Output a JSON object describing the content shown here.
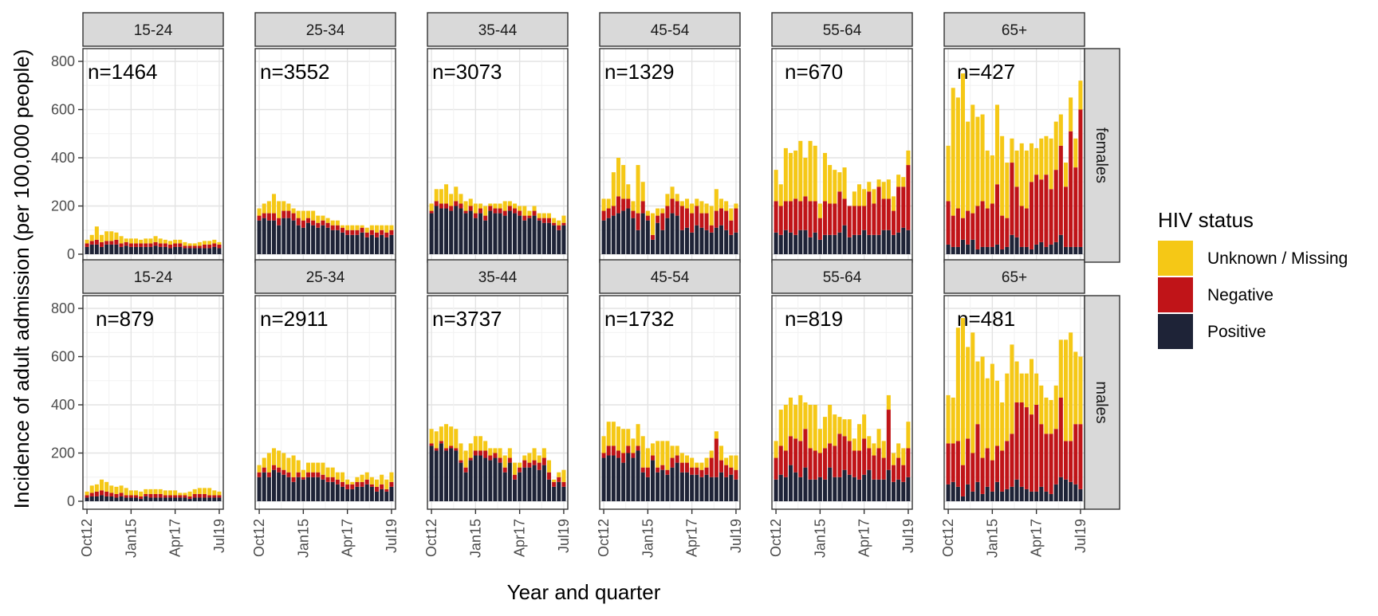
{
  "chart_data": {
    "type": "bar",
    "stacked": true,
    "facets": {
      "columns": [
        "15-24",
        "25-34",
        "35-44",
        "45-54",
        "55-64",
        "65+"
      ],
      "rows": [
        "females",
        "males"
      ]
    },
    "xlabel": "Year and quarter",
    "ylabel": "Incidence of adult admission (per 100,000 people)",
    "ylim": [
      0,
      800
    ],
    "yticks": [
      0,
      200,
      400,
      600,
      800
    ],
    "x_tick_labels": [
      "Oct12",
      "Jan15",
      "Apr17",
      "Jul19"
    ],
    "x_tick_index": [
      0,
      9,
      18,
      27
    ],
    "grid": true,
    "legend": {
      "title": "HIV status",
      "placement": "right",
      "entries": [
        {
          "name": "Unknown / Missing",
          "color": "#F5C816"
        },
        {
          "name": "Negative",
          "color": "#C01418"
        },
        {
          "name": "Positive",
          "color": "#1E2337"
        }
      ]
    },
    "panels": [
      {
        "row": "females",
        "age": "15-24",
        "n_label": "n=1464",
        "positive": [
          30,
          40,
          40,
          30,
          40,
          40,
          40,
          30,
          35,
          30,
          30,
          30,
          30,
          30,
          35,
          30,
          30,
          25,
          30,
          30,
          25,
          25,
          25,
          25,
          25,
          25,
          30,
          25
        ],
        "negative": [
          15,
          15,
          20,
          20,
          15,
          15,
          20,
          15,
          15,
          15,
          15,
          15,
          15,
          15,
          15,
          15,
          15,
          15,
          15,
          15,
          10,
          10,
          10,
          10,
          15,
          15,
          15,
          15
        ],
        "unknown": [
          15,
          25,
          55,
          30,
          40,
          40,
          30,
          30,
          15,
          20,
          20,
          15,
          20,
          20,
          25,
          20,
          15,
          15,
          15,
          15,
          15,
          10,
          10,
          15,
          15,
          15,
          15,
          10
        ]
      },
      {
        "row": "females",
        "age": "25-34",
        "n_label": "n=3552",
        "positive": [
          140,
          150,
          140,
          140,
          120,
          150,
          150,
          140,
          120,
          110,
          130,
          120,
          110,
          120,
          110,
          100,
          100,
          90,
          80,
          80,
          80,
          90,
          70,
          80,
          70,
          80,
          70,
          80
        ],
        "negative": [
          20,
          20,
          30,
          30,
          30,
          30,
          30,
          30,
          30,
          30,
          20,
          20,
          20,
          20,
          20,
          20,
          20,
          20,
          20,
          20,
          20,
          20,
          20,
          20,
          20,
          20,
          20,
          20
        ],
        "unknown": [
          30,
          40,
          50,
          80,
          70,
          40,
          30,
          20,
          30,
          40,
          30,
          40,
          30,
          20,
          20,
          20,
          20,
          10,
          20,
          20,
          20,
          10,
          20,
          20,
          30,
          20,
          30,
          20
        ]
      },
      {
        "row": "females",
        "age": "35-44",
        "n_label": "n=3073",
        "positive": [
          170,
          200,
          190,
          190,
          180,
          200,
          190,
          170,
          180,
          150,
          170,
          140,
          180,
          170,
          170,
          160,
          180,
          170,
          160,
          140,
          150,
          160,
          140,
          130,
          130,
          120,
          100,
          120
        ],
        "negative": [
          10,
          20,
          20,
          20,
          20,
          20,
          20,
          10,
          20,
          20,
          20,
          20,
          20,
          20,
          20,
          20,
          20,
          20,
          20,
          20,
          10,
          20,
          10,
          20,
          20,
          10,
          20,
          10
        ],
        "unknown": [
          30,
          50,
          60,
          80,
          50,
          60,
          40,
          40,
          30,
          40,
          20,
          40,
          10,
          20,
          20,
          40,
          20,
          20,
          20,
          40,
          20,
          20,
          20,
          20,
          20,
          20,
          20,
          30
        ]
      },
      {
        "row": "females",
        "age": "45-54",
        "n_label": "n=1329",
        "positive": [
          140,
          150,
          160,
          170,
          180,
          190,
          150,
          100,
          170,
          140,
          60,
          130,
          100,
          150,
          170,
          160,
          100,
          110,
          90,
          120,
          110,
          100,
          90,
          110,
          120,
          100,
          80,
          90
        ],
        "negative": [
          40,
          40,
          40,
          70,
          50,
          40,
          30,
          70,
          50,
          20,
          20,
          30,
          70,
          50,
          60,
          60,
          100,
          80,
          80,
          80,
          60,
          70,
          30,
          70,
          70,
          80,
          60,
          100
        ],
        "unknown": [
          50,
          40,
          140,
          160,
          140,
          60,
          40,
          200,
          80,
          20,
          90,
          30,
          20,
          50,
          50,
          30,
          20,
          40,
          40,
          30,
          50,
          40,
          80,
          90,
          40,
          40,
          50,
          20
        ]
      },
      {
        "row": "females",
        "age": "55-64",
        "n_label": "n=670",
        "positive": [
          90,
          80,
          100,
          90,
          80,
          100,
          100,
          70,
          90,
          60,
          80,
          80,
          80,
          90,
          120,
          70,
          80,
          80,
          100,
          80,
          80,
          80,
          100,
          100,
          80,
          90,
          110,
          100
        ],
        "negative": [
          130,
          120,
          120,
          130,
          150,
          120,
          140,
          150,
          130,
          90,
          140,
          130,
          130,
          170,
          110,
          130,
          120,
          120,
          100,
          180,
          130,
          200,
          130,
          130,
          100,
          190,
          170,
          270
        ],
        "unknown": [
          130,
          90,
          220,
          200,
          200,
          250,
          160,
          250,
          230,
          60,
          200,
          160,
          140,
          80,
          130,
          0,
          60,
          90,
          70,
          40,
          60,
          30,
          70,
          80,
          60,
          50,
          40,
          60
        ]
      },
      {
        "row": "females",
        "age": "65+",
        "n_label": "n=427",
        "positive": [
          40,
          30,
          30,
          60,
          40,
          60,
          20,
          30,
          30,
          30,
          40,
          20,
          30,
          80,
          70,
          30,
          30,
          20,
          40,
          50,
          30,
          40,
          50,
          80,
          30,
          30,
          30,
          30
        ],
        "negative": [
          180,
          130,
          160,
          90,
          140,
          110,
          180,
          190,
          160,
          180,
          250,
          140,
          120,
          300,
          210,
          170,
          160,
          280,
          290,
          260,
          300,
          230,
          300,
          370,
          250,
          480,
          330,
          570
        ],
        "unknown": [
          230,
          530,
          460,
          600,
          370,
          450,
          370,
          360,
          240,
          200,
          330,
          330,
          230,
          100,
          150,
          260,
          240,
          160,
          110,
          170,
          160,
          210,
          200,
          130,
          100,
          140,
          120,
          120
        ]
      },
      {
        "row": "males",
        "age": "15-24",
        "n_label": "n=879",
        "positive": [
          15,
          20,
          20,
          25,
          20,
          20,
          15,
          20,
          15,
          15,
          15,
          10,
          20,
          15,
          15,
          15,
          15,
          15,
          15,
          15,
          15,
          10,
          15,
          15,
          15,
          15,
          15,
          15
        ],
        "negative": [
          10,
          15,
          20,
          20,
          20,
          15,
          15,
          15,
          10,
          10,
          10,
          10,
          10,
          15,
          15,
          15,
          10,
          10,
          10,
          10,
          10,
          10,
          15,
          15,
          15,
          10,
          10,
          10
        ],
        "unknown": [
          15,
          30,
          30,
          45,
          40,
          30,
          30,
          30,
          30,
          20,
          20,
          20,
          20,
          20,
          20,
          20,
          20,
          20,
          20,
          10,
          10,
          20,
          20,
          25,
          25,
          30,
          20,
          15
        ]
      },
      {
        "row": "males",
        "age": "25-34",
        "n_label": "n=2911",
        "positive": [
          100,
          120,
          100,
          130,
          120,
          110,
          100,
          80,
          100,
          90,
          100,
          100,
          100,
          90,
          80,
          80,
          70,
          60,
          50,
          50,
          60,
          60,
          70,
          60,
          40,
          50,
          40,
          60
        ],
        "negative": [
          20,
          20,
          20,
          20,
          20,
          20,
          20,
          20,
          20,
          10,
          20,
          20,
          20,
          20,
          20,
          20,
          20,
          20,
          20,
          20,
          20,
          20,
          20,
          10,
          20,
          20,
          10,
          20
        ],
        "unknown": [
          30,
          40,
          80,
          70,
          70,
          70,
          60,
          90,
          50,
          30,
          40,
          40,
          40,
          50,
          40,
          40,
          30,
          40,
          20,
          10,
          20,
          30,
          30,
          30,
          30,
          40,
          40,
          40
        ]
      },
      {
        "row": "males",
        "age": "35-44",
        "n_label": "n=3737",
        "positive": [
          230,
          210,
          240,
          210,
          220,
          210,
          160,
          120,
          170,
          190,
          190,
          180,
          170,
          180,
          160,
          120,
          160,
          90,
          120,
          140,
          140,
          150,
          130,
          150,
          90,
          60,
          80,
          60
        ],
        "negative": [
          10,
          10,
          10,
          10,
          10,
          10,
          10,
          20,
          10,
          20,
          20,
          30,
          20,
          20,
          20,
          20,
          20,
          20,
          20,
          30,
          20,
          20,
          30,
          30,
          30,
          20,
          20,
          20
        ],
        "unknown": [
          60,
          70,
          60,
          100,
          80,
          80,
          70,
          70,
          60,
          60,
          60,
          40,
          30,
          20,
          40,
          50,
          40,
          50,
          20,
          20,
          40,
          50,
          30,
          40,
          50,
          10,
          20,
          50
        ]
      },
      {
        "row": "males",
        "age": "45-54",
        "n_label": "n=1732",
        "positive": [
          180,
          190,
          190,
          180,
          160,
          200,
          180,
          210,
          120,
          100,
          170,
          120,
          130,
          110,
          140,
          160,
          120,
          120,
          110,
          110,
          100,
          110,
          100,
          100,
          120,
          100,
          110,
          90
        ],
        "negative": [
          20,
          40,
          40,
          30,
          40,
          30,
          20,
          20,
          20,
          40,
          20,
          20,
          20,
          20,
          40,
          30,
          40,
          40,
          30,
          30,
          30,
          30,
          80,
          160,
          50,
          50,
          30,
          40
        ],
        "unknown": [
          70,
          100,
          100,
          100,
          100,
          70,
          60,
          90,
          130,
          80,
          50,
          110,
          100,
          120,
          50,
          40,
          40,
          30,
          40,
          20,
          30,
          40,
          30,
          30,
          60,
          30,
          50,
          60
        ]
      },
      {
        "row": "males",
        "age": "55-64",
        "n_label": "n=819",
        "positive": [
          90,
          110,
          100,
          150,
          120,
          100,
          140,
          90,
          90,
          100,
          90,
          140,
          100,
          100,
          130,
          110,
          100,
          90,
          110,
          130,
          90,
          90,
          90,
          130,
          80,
          90,
          80,
          100
        ],
        "negative": [
          90,
          120,
          110,
          120,
          140,
          150,
          160,
          130,
          120,
          100,
          130,
          100,
          130,
          180,
          140,
          140,
          110,
          120,
          150,
          90,
          100,
          130,
          90,
          250,
          70,
          90,
          70,
          120
        ],
        "unknown": [
          70,
          150,
          190,
          160,
          140,
          190,
          110,
          180,
          190,
          100,
          130,
          160,
          130,
          70,
          70,
          90,
          50,
          110,
          100,
          50,
          50,
          80,
          70,
          60,
          50,
          60,
          70,
          110
        ]
      },
      {
        "row": "males",
        "age": "65+",
        "n_label": "n=481",
        "positive": [
          70,
          80,
          60,
          20,
          70,
          40,
          80,
          30,
          60,
          40,
          80,
          40,
          50,
          60,
          90,
          60,
          50,
          40,
          40,
          60,
          40,
          30,
          70,
          100,
          90,
          80,
          70,
          50
        ],
        "negative": [
          170,
          160,
          190,
          130,
          190,
          160,
          240,
          150,
          160,
          130,
          150,
          170,
          200,
          220,
          320,
          350,
          340,
          320,
          360,
          260,
          240,
          250,
          230,
          330,
          160,
          170,
          250,
          270
        ],
        "unknown": [
          200,
          190,
          470,
          610,
          380,
          500,
          260,
          420,
          290,
          400,
          270,
          200,
          280,
          370,
          170,
          120,
          140,
          230,
          130,
          160,
          150,
          140,
          180,
          240,
          420,
          450,
          300,
          280
        ]
      }
    ]
  }
}
